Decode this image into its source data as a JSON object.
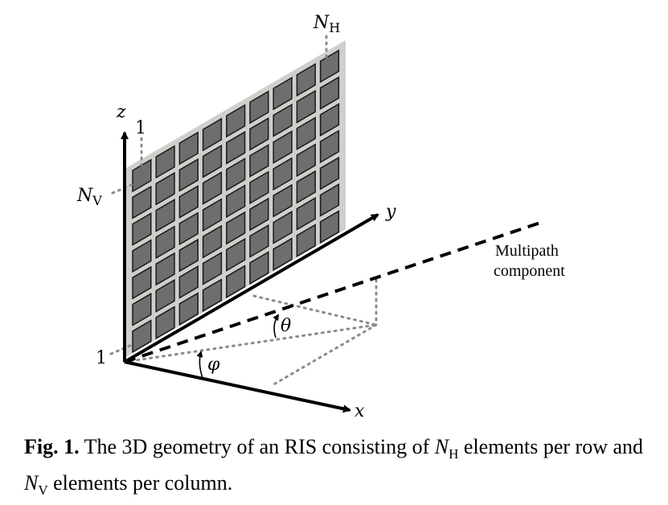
{
  "diagram": {
    "axes": {
      "x": "x",
      "y": "y",
      "z": "z"
    },
    "index_labels": {
      "top_one": "1",
      "bottom_one": "1",
      "nh_base": "N",
      "nh_sub": "H",
      "nv_base": "N",
      "nv_sub": "V"
    },
    "angles": {
      "theta": "θ",
      "phi": "φ"
    },
    "annotation_line1": "Multipath",
    "annotation_line2": "component",
    "grid": {
      "rows": 7,
      "columns": 9
    },
    "colors": {
      "panel": "#cfcfcb",
      "element": "#6e6e6e",
      "element_border": "#1a1a1a",
      "guide": "#8c8c8c"
    }
  },
  "caption": {
    "label": "Fig. 1.",
    "text_1": " The 3D geometry of an RIS consisting of ",
    "nh_base": "N",
    "nh_sub": "H",
    "text_2": " elements per row and ",
    "nv_base": "N",
    "nv_sub": "V",
    "text_3": " elements per column."
  }
}
